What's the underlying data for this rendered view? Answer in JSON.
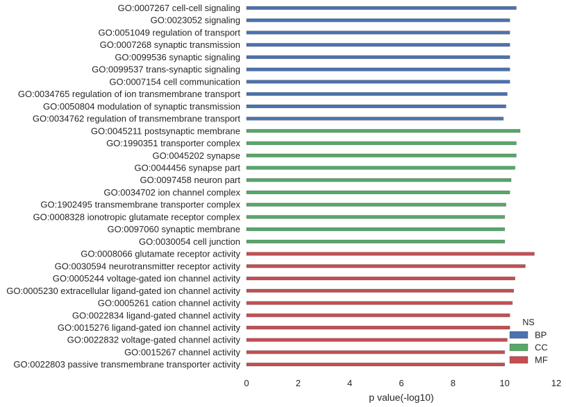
{
  "chart_data": {
    "type": "bar",
    "orientation": "horizontal",
    "xlabel": "p value(-log10)",
    "ylabel": "",
    "title": "",
    "xlim": [
      0,
      12
    ],
    "xticks": [
      0,
      2,
      4,
      6,
      8,
      10,
      12
    ],
    "grid": false,
    "legend": {
      "title": "NS",
      "placement": "bottom-right",
      "entries": [
        {
          "name": "BP",
          "color": "#4c72b0"
        },
        {
          "name": "CC",
          "color": "#55a868"
        },
        {
          "name": "MF",
          "color": "#c44e52"
        }
      ]
    },
    "bars": [
      {
        "label": "GO:0007267 cell-cell signaling",
        "value": 10.45,
        "group": "BP"
      },
      {
        "label": "GO:0023052 signaling",
        "value": 10.2,
        "group": "BP"
      },
      {
        "label": "GO:0051049 regulation of transport",
        "value": 10.2,
        "group": "BP"
      },
      {
        "label": "GO:0007268 synaptic transmission",
        "value": 10.2,
        "group": "BP"
      },
      {
        "label": "GO:0099536 synaptic signaling",
        "value": 10.2,
        "group": "BP"
      },
      {
        "label": "GO:0099537 trans-synaptic signaling",
        "value": 10.2,
        "group": "BP"
      },
      {
        "label": "GO:0007154 cell communication",
        "value": 10.2,
        "group": "BP"
      },
      {
        "label": "GO:0034765 regulation of ion transmembrane transport",
        "value": 10.1,
        "group": "BP"
      },
      {
        "label": "GO:0050804 modulation of synaptic transmission",
        "value": 10.05,
        "group": "BP"
      },
      {
        "label": "GO:0034762 regulation of transmembrane transport",
        "value": 9.95,
        "group": "BP"
      },
      {
        "label": "GO:0045211 postsynaptic membrane",
        "value": 10.6,
        "group": "CC"
      },
      {
        "label": "GO:1990351 transporter complex",
        "value": 10.45,
        "group": "CC"
      },
      {
        "label": "GO:0045202 synapse",
        "value": 10.45,
        "group": "CC"
      },
      {
        "label": "GO:0044456 synapse part",
        "value": 10.4,
        "group": "CC"
      },
      {
        "label": "GO:0097458 neuron part",
        "value": 10.25,
        "group": "CC"
      },
      {
        "label": "GO:0034702 ion channel complex",
        "value": 10.2,
        "group": "CC"
      },
      {
        "label": "GO:1902495 transmembrane transporter complex",
        "value": 10.05,
        "group": "CC"
      },
      {
        "label": "GO:0008328 ionotropic glutamate receptor complex",
        "value": 10.0,
        "group": "CC"
      },
      {
        "label": "GO:0097060 synaptic membrane",
        "value": 10.0,
        "group": "CC"
      },
      {
        "label": "GO:0030054 cell junction",
        "value": 10.0,
        "group": "CC"
      },
      {
        "label": "GO:0008066 glutamate receptor activity",
        "value": 11.15,
        "group": "MF"
      },
      {
        "label": "GO:0030594 neurotransmitter receptor activity",
        "value": 10.8,
        "group": "MF"
      },
      {
        "label": "GO:0005244 voltage-gated ion channel activity",
        "value": 10.4,
        "group": "MF"
      },
      {
        "label": "GO:0005230 extracellular ligand-gated ion channel activity",
        "value": 10.35,
        "group": "MF"
      },
      {
        "label": "GO:0005261 cation channel activity",
        "value": 10.3,
        "group": "MF"
      },
      {
        "label": "GO:0022834 ligand-gated channel activity",
        "value": 10.2,
        "group": "MF"
      },
      {
        "label": "GO:0015276 ligand-gated ion channel activity",
        "value": 10.2,
        "group": "MF"
      },
      {
        "label": "GO:0022832 voltage-gated channel activity",
        "value": 10.1,
        "group": "MF"
      },
      {
        "label": "GO:0015267 channel activity",
        "value": 10.0,
        "group": "MF"
      },
      {
        "label": "GO:0022803 passive transmembrane transporter activity",
        "value": 10.0,
        "group": "MF"
      }
    ]
  }
}
